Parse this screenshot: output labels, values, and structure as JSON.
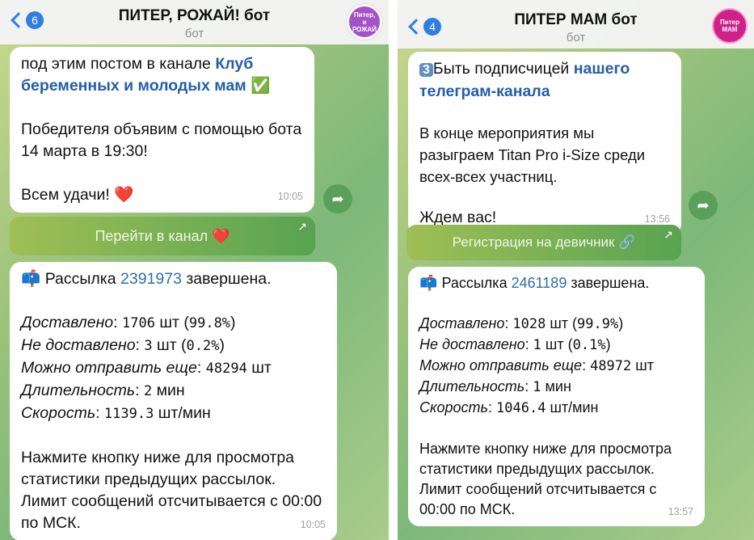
{
  "left": {
    "header": {
      "title": "ПИТЕР, РОЖАЙ! бот",
      "subtitle": "бот",
      "unread_count": "6",
      "avatar_text": "Питер, и РОЖАЙ"
    },
    "message1": {
      "line_cut": "под этим постом в канале ",
      "link": "Клуб беременных и молодых мам",
      "emoji_check": "✅",
      "p2": "Победителя объявим с помощью бота 14 марта в 19:30!",
      "p3": "Всем удачи!",
      "emoji_heart": "❤️",
      "time": "10:05"
    },
    "button1": {
      "label": "Перейти в канал",
      "emoji": "❤️",
      "arrow": "↗"
    },
    "message2": {
      "emoji": "📫",
      "prefix": "Рассылка ",
      "id": "2391973",
      "suffix": " завершена.",
      "stats": [
        {
          "label": "Доставлено",
          "value": "1706",
          "unit": " шт (",
          "pct": "99.8%",
          "close": ")"
        },
        {
          "label": "Не доставлено",
          "value": "3",
          "unit": " шт (",
          "pct": "0.2%",
          "close": ")"
        },
        {
          "label": "Можно отправить еще",
          "value": "48294",
          "unit": " шт",
          "pct": "",
          "close": ""
        },
        {
          "label": "Длительность",
          "value": "2",
          "unit": " мин",
          "pct": "",
          "close": ""
        },
        {
          "label": "Скорость",
          "value": "1139.3",
          "unit": " шт/мин",
          "pct": "",
          "close": ""
        }
      ],
      "footer": "Нажмите кнопку ниже для просмотра статистики предыдущих рассылок. Лимит сообщений отсчитывается с 00:00 по МСК.",
      "time": "10:05"
    }
  },
  "right": {
    "header": {
      "title": "ПИТЕР МАМ бот",
      "subtitle": "бот",
      "unread_count": "4",
      "avatar_text": "Питер МАМ"
    },
    "message1": {
      "num_emoji": "3",
      "p1": "Быть подписчицей ",
      "link": "нашего телеграм-канала",
      "p2": "В конце мероприятия мы разыграем Titan Pro i-Size среди всех-всех участниц.",
      "p3": "Ждем вас!",
      "time": "13:56"
    },
    "button1": {
      "label": "Регистрация на девичник",
      "emoji": "🔗",
      "arrow": "↗"
    },
    "message2": {
      "emoji": "📫",
      "prefix": "Рассылка ",
      "id": "2461189",
      "suffix": " завершена.",
      "stats": [
        {
          "label": "Доставлено",
          "value": "1028",
          "unit": " шт (",
          "pct": "99.9%",
          "close": ")"
        },
        {
          "label": "Не доставлено",
          "value": "1",
          "unit": " шт (",
          "pct": "0.1%",
          "close": ")"
        },
        {
          "label": "Можно отправить еще",
          "value": "48972",
          "unit": " шт",
          "pct": "",
          "close": ""
        },
        {
          "label": "Длительность",
          "value": "1",
          "unit": " мин",
          "pct": "",
          "close": ""
        },
        {
          "label": "Скорость",
          "value": "1046.4",
          "unit": " шт/мин",
          "pct": "",
          "close": ""
        }
      ],
      "footer": "Нажмите кнопку ниже для просмотра статистики предыдущих рассылок. Лимит сообщений отсчитывается с 00:00 по МСК.",
      "time": "13:57"
    }
  }
}
